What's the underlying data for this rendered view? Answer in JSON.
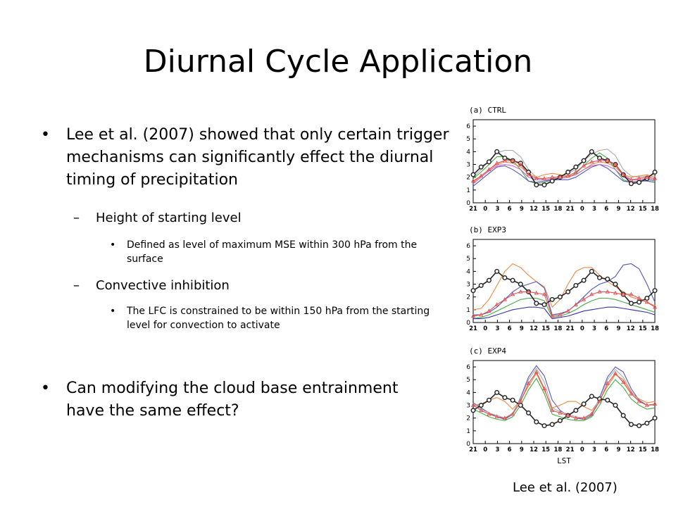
{
  "slide": {
    "title": "Diurnal Cycle Application",
    "bullet1": "Lee et al. (2007) showed  that only certain trigger mechanisms can significantly effect the diurnal timing of precipitation",
    "sub1": "Height of starting level",
    "subsub1": "Defined as level of maximum MSE within 300 hPa from the surface",
    "sub2": "Convective inhibition",
    "subsub2": "The LFC is constrained to be within 150 hPa from the starting level for convection to activate",
    "bullet2": "Can modifying the cloud base entrainment have the same effect?",
    "caption": "Lee et al. (2007)",
    "bullet_symbol": "•",
    "dash_symbol": "–"
  },
  "chart_data": [
    {
      "type": "line",
      "title": "(a)  CTRL",
      "ylim": [
        0,
        6.5
      ],
      "yticks": [
        "0",
        "1",
        "2",
        "3",
        "4",
        "5",
        "6"
      ],
      "xticks": [
        "21",
        "0",
        "3",
        "6",
        "9",
        "12",
        "15",
        "18",
        "21",
        "0",
        "3",
        "6",
        "9",
        "12",
        "15",
        "18"
      ],
      "series": [
        {
          "color": "#222222",
          "marker": "circle",
          "values": [
            2.2,
            2.8,
            3.2,
            4.0,
            3.5,
            3.3,
            3.1,
            2.4,
            1.4,
            1.4,
            1.7,
            2.0,
            2.4,
            2.8,
            3.3,
            4.0,
            3.5,
            3.3,
            3.0,
            2.2,
            1.5,
            1.6,
            1.9,
            2.4
          ]
        },
        {
          "color": "#e05050",
          "marker": "triangle",
          "values": [
            1.7,
            2.1,
            2.6,
            3.1,
            3.3,
            3.3,
            3.0,
            2.2,
            1.9,
            1.9,
            2.0,
            2.0,
            2.1,
            2.4,
            2.9,
            3.2,
            3.3,
            3.3,
            3.0,
            2.2,
            1.8,
            1.9,
            2.0,
            1.9
          ]
        },
        {
          "color": "#aaaaaa",
          "marker": "none",
          "values": [
            2.0,
            2.6,
            3.3,
            3.9,
            4.1,
            4.1,
            3.6,
            2.6,
            2.0,
            1.8,
            1.9,
            2.1,
            2.3,
            2.6,
            3.3,
            3.8,
            4.1,
            4.2,
            3.7,
            2.6,
            2.1,
            2.0,
            2.1,
            2.2
          ]
        },
        {
          "color": "#44aa44",
          "marker": "none",
          "values": [
            1.9,
            2.4,
            3.0,
            3.6,
            3.6,
            3.3,
            2.6,
            1.7,
            1.5,
            1.6,
            1.8,
            1.9,
            2.0,
            2.3,
            2.9,
            3.5,
            3.9,
            3.5,
            2.6,
            1.8,
            1.6,
            1.7,
            1.8,
            1.7
          ]
        },
        {
          "color": "#ee8844",
          "marker": "none",
          "values": [
            1.6,
            2.1,
            2.6,
            3.0,
            3.2,
            3.1,
            2.8,
            2.3,
            2.0,
            2.2,
            2.3,
            2.2,
            2.1,
            2.2,
            2.6,
            3.0,
            3.2,
            3.1,
            2.8,
            2.2,
            2.0,
            2.1,
            2.2,
            2.0
          ]
        },
        {
          "color": "#5555bb",
          "marker": "none",
          "values": [
            1.3,
            1.8,
            2.3,
            2.8,
            2.9,
            2.6,
            2.2,
            1.7,
            1.6,
            1.7,
            1.8,
            1.8,
            1.8,
            2.0,
            2.4,
            2.8,
            3.0,
            2.7,
            2.2,
            1.7,
            1.6,
            1.7,
            1.7,
            1.6
          ]
        },
        {
          "color": "#cc66cc",
          "marker": "none",
          "values": [
            1.5,
            2.0,
            2.5,
            2.9,
            3.0,
            2.9,
            2.6,
            2.0,
            1.8,
            1.8,
            1.9,
            1.9,
            2.0,
            2.2,
            2.6,
            2.9,
            3.0,
            2.9,
            2.6,
            2.0,
            1.8,
            1.8,
            1.9,
            1.8
          ]
        }
      ]
    },
    {
      "type": "line",
      "title": "(b)  EXP3",
      "ylim": [
        0,
        6.5
      ],
      "yticks": [
        "0",
        "1",
        "2",
        "3",
        "4",
        "5",
        "6"
      ],
      "xticks": [
        "21",
        "0",
        "3",
        "6",
        "9",
        "12",
        "15",
        "18",
        "21",
        "0",
        "3",
        "6",
        "9",
        "12",
        "15",
        "18"
      ],
      "series": [
        {
          "color": "#222222",
          "marker": "circle",
          "values": [
            2.5,
            2.9,
            3.3,
            4.0,
            3.5,
            3.3,
            3.0,
            2.4,
            1.5,
            1.4,
            1.8,
            2.0,
            2.4,
            2.9,
            3.3,
            4.0,
            3.5,
            3.4,
            3.0,
            2.2,
            1.5,
            1.6,
            1.9,
            2.5
          ]
        },
        {
          "color": "#e05050",
          "marker": "triangle",
          "values": [
            0.5,
            0.6,
            0.9,
            1.4,
            1.8,
            2.2,
            2.4,
            2.4,
            2.3,
            2.2,
            0.5,
            0.6,
            0.9,
            1.4,
            1.8,
            2.2,
            2.4,
            2.4,
            2.3,
            2.2,
            2.2,
            1.9,
            1.6,
            1.2
          ]
        },
        {
          "color": "#ee8844",
          "marker": "none",
          "values": [
            1.0,
            1.1,
            1.8,
            2.9,
            4.0,
            4.6,
            4.3,
            3.7,
            3.2,
            2.8,
            1.2,
            1.8,
            3.0,
            4.0,
            4.3,
            4.3,
            3.7,
            3.2,
            2.8,
            2.4,
            2.0,
            1.8,
            1.6,
            1.3
          ]
        },
        {
          "color": "#5555bb",
          "marker": "none",
          "values": [
            0.6,
            0.6,
            0.8,
            1.2,
            1.8,
            2.4,
            2.8,
            3.0,
            3.2,
            2.7,
            0.6,
            0.7,
            0.9,
            1.4,
            2.0,
            2.6,
            3.0,
            3.2,
            3.6,
            4.5,
            4.6,
            4.2,
            3.0,
            1.6
          ]
        },
        {
          "color": "#44aa44",
          "marker": "none",
          "values": [
            0.3,
            0.4,
            0.6,
            0.9,
            1.2,
            1.5,
            1.8,
            1.9,
            1.9,
            1.7,
            0.4,
            0.5,
            0.7,
            1.0,
            1.4,
            1.7,
            1.9,
            1.9,
            1.8,
            1.6,
            1.4,
            1.2,
            1.0,
            0.8
          ]
        },
        {
          "color": "#3333aa",
          "marker": "none",
          "values": [
            0.3,
            0.3,
            0.4,
            0.6,
            0.8,
            1.0,
            1.1,
            1.2,
            1.2,
            1.1,
            0.3,
            0.4,
            0.5,
            0.7,
            0.9,
            1.0,
            1.1,
            1.2,
            1.2,
            1.1,
            1.0,
            0.9,
            0.8,
            0.6
          ]
        }
      ]
    },
    {
      "type": "line",
      "title": "(c)  EXP4",
      "xlabel": "LST",
      "ylim": [
        0,
        6.5
      ],
      "yticks": [
        "0",
        "1",
        "2",
        "3",
        "4",
        "5",
        "6"
      ],
      "xticks": [
        "21",
        "0",
        "3",
        "6",
        "9",
        "12",
        "15",
        "18",
        "21",
        "0",
        "3",
        "6",
        "9",
        "12",
        "15",
        "18"
      ],
      "series": [
        {
          "color": "#222222",
          "marker": "circle",
          "values": [
            2.6,
            3.0,
            3.4,
            4.0,
            3.6,
            3.4,
            3.0,
            2.4,
            1.7,
            1.4,
            1.5,
            1.8,
            2.2,
            2.6,
            3.1,
            3.7,
            3.5,
            3.4,
            3.0,
            2.2,
            1.5,
            1.4,
            1.6,
            2.0
          ]
        },
        {
          "color": "#e05050",
          "marker": "triangle",
          "values": [
            3.0,
            2.6,
            2.3,
            2.1,
            2.0,
            2.3,
            3.3,
            4.7,
            5.6,
            4.3,
            2.6,
            2.4,
            2.2,
            2.0,
            2.0,
            2.3,
            3.3,
            4.7,
            5.5,
            4.8,
            3.9,
            3.3,
            3.0,
            3.1
          ]
        },
        {
          "color": "#5555bb",
          "marker": "none",
          "values": [
            3.2,
            2.8,
            2.4,
            2.1,
            1.9,
            2.3,
            3.6,
            5.2,
            6.1,
            5.3,
            3.4,
            2.6,
            2.2,
            2.0,
            1.9,
            2.2,
            3.6,
            5.2,
            6.0,
            5.6,
            4.3,
            3.4,
            3.0,
            3.0
          ]
        },
        {
          "color": "#ee8844",
          "marker": "none",
          "values": [
            3.0,
            3.1,
            3.4,
            3.6,
            3.3,
            2.7,
            3.4,
            4.5,
            5.5,
            4.2,
            2.8,
            3.0,
            3.3,
            3.3,
            2.9,
            2.6,
            3.4,
            4.5,
            5.4,
            5.0,
            4.0,
            3.5,
            3.2,
            3.3
          ]
        },
        {
          "color": "#44aa44",
          "marker": "none",
          "values": [
            2.7,
            2.4,
            2.1,
            1.9,
            1.8,
            2.1,
            3.0,
            4.2,
            5.1,
            3.9,
            2.3,
            2.1,
            1.9,
            1.8,
            1.8,
            2.1,
            3.0,
            4.2,
            5.0,
            4.4,
            3.5,
            3.0,
            2.7,
            2.8
          ]
        },
        {
          "color": "#aaaaaa",
          "marker": "none",
          "values": [
            3.1,
            2.7,
            2.4,
            2.2,
            2.0,
            2.4,
            3.5,
            5.0,
            5.9,
            4.8,
            2.8,
            2.5,
            2.3,
            2.1,
            2.0,
            2.4,
            3.5,
            5.0,
            5.8,
            5.2,
            4.1,
            3.3,
            3.0,
            3.0
          ]
        }
      ]
    }
  ]
}
